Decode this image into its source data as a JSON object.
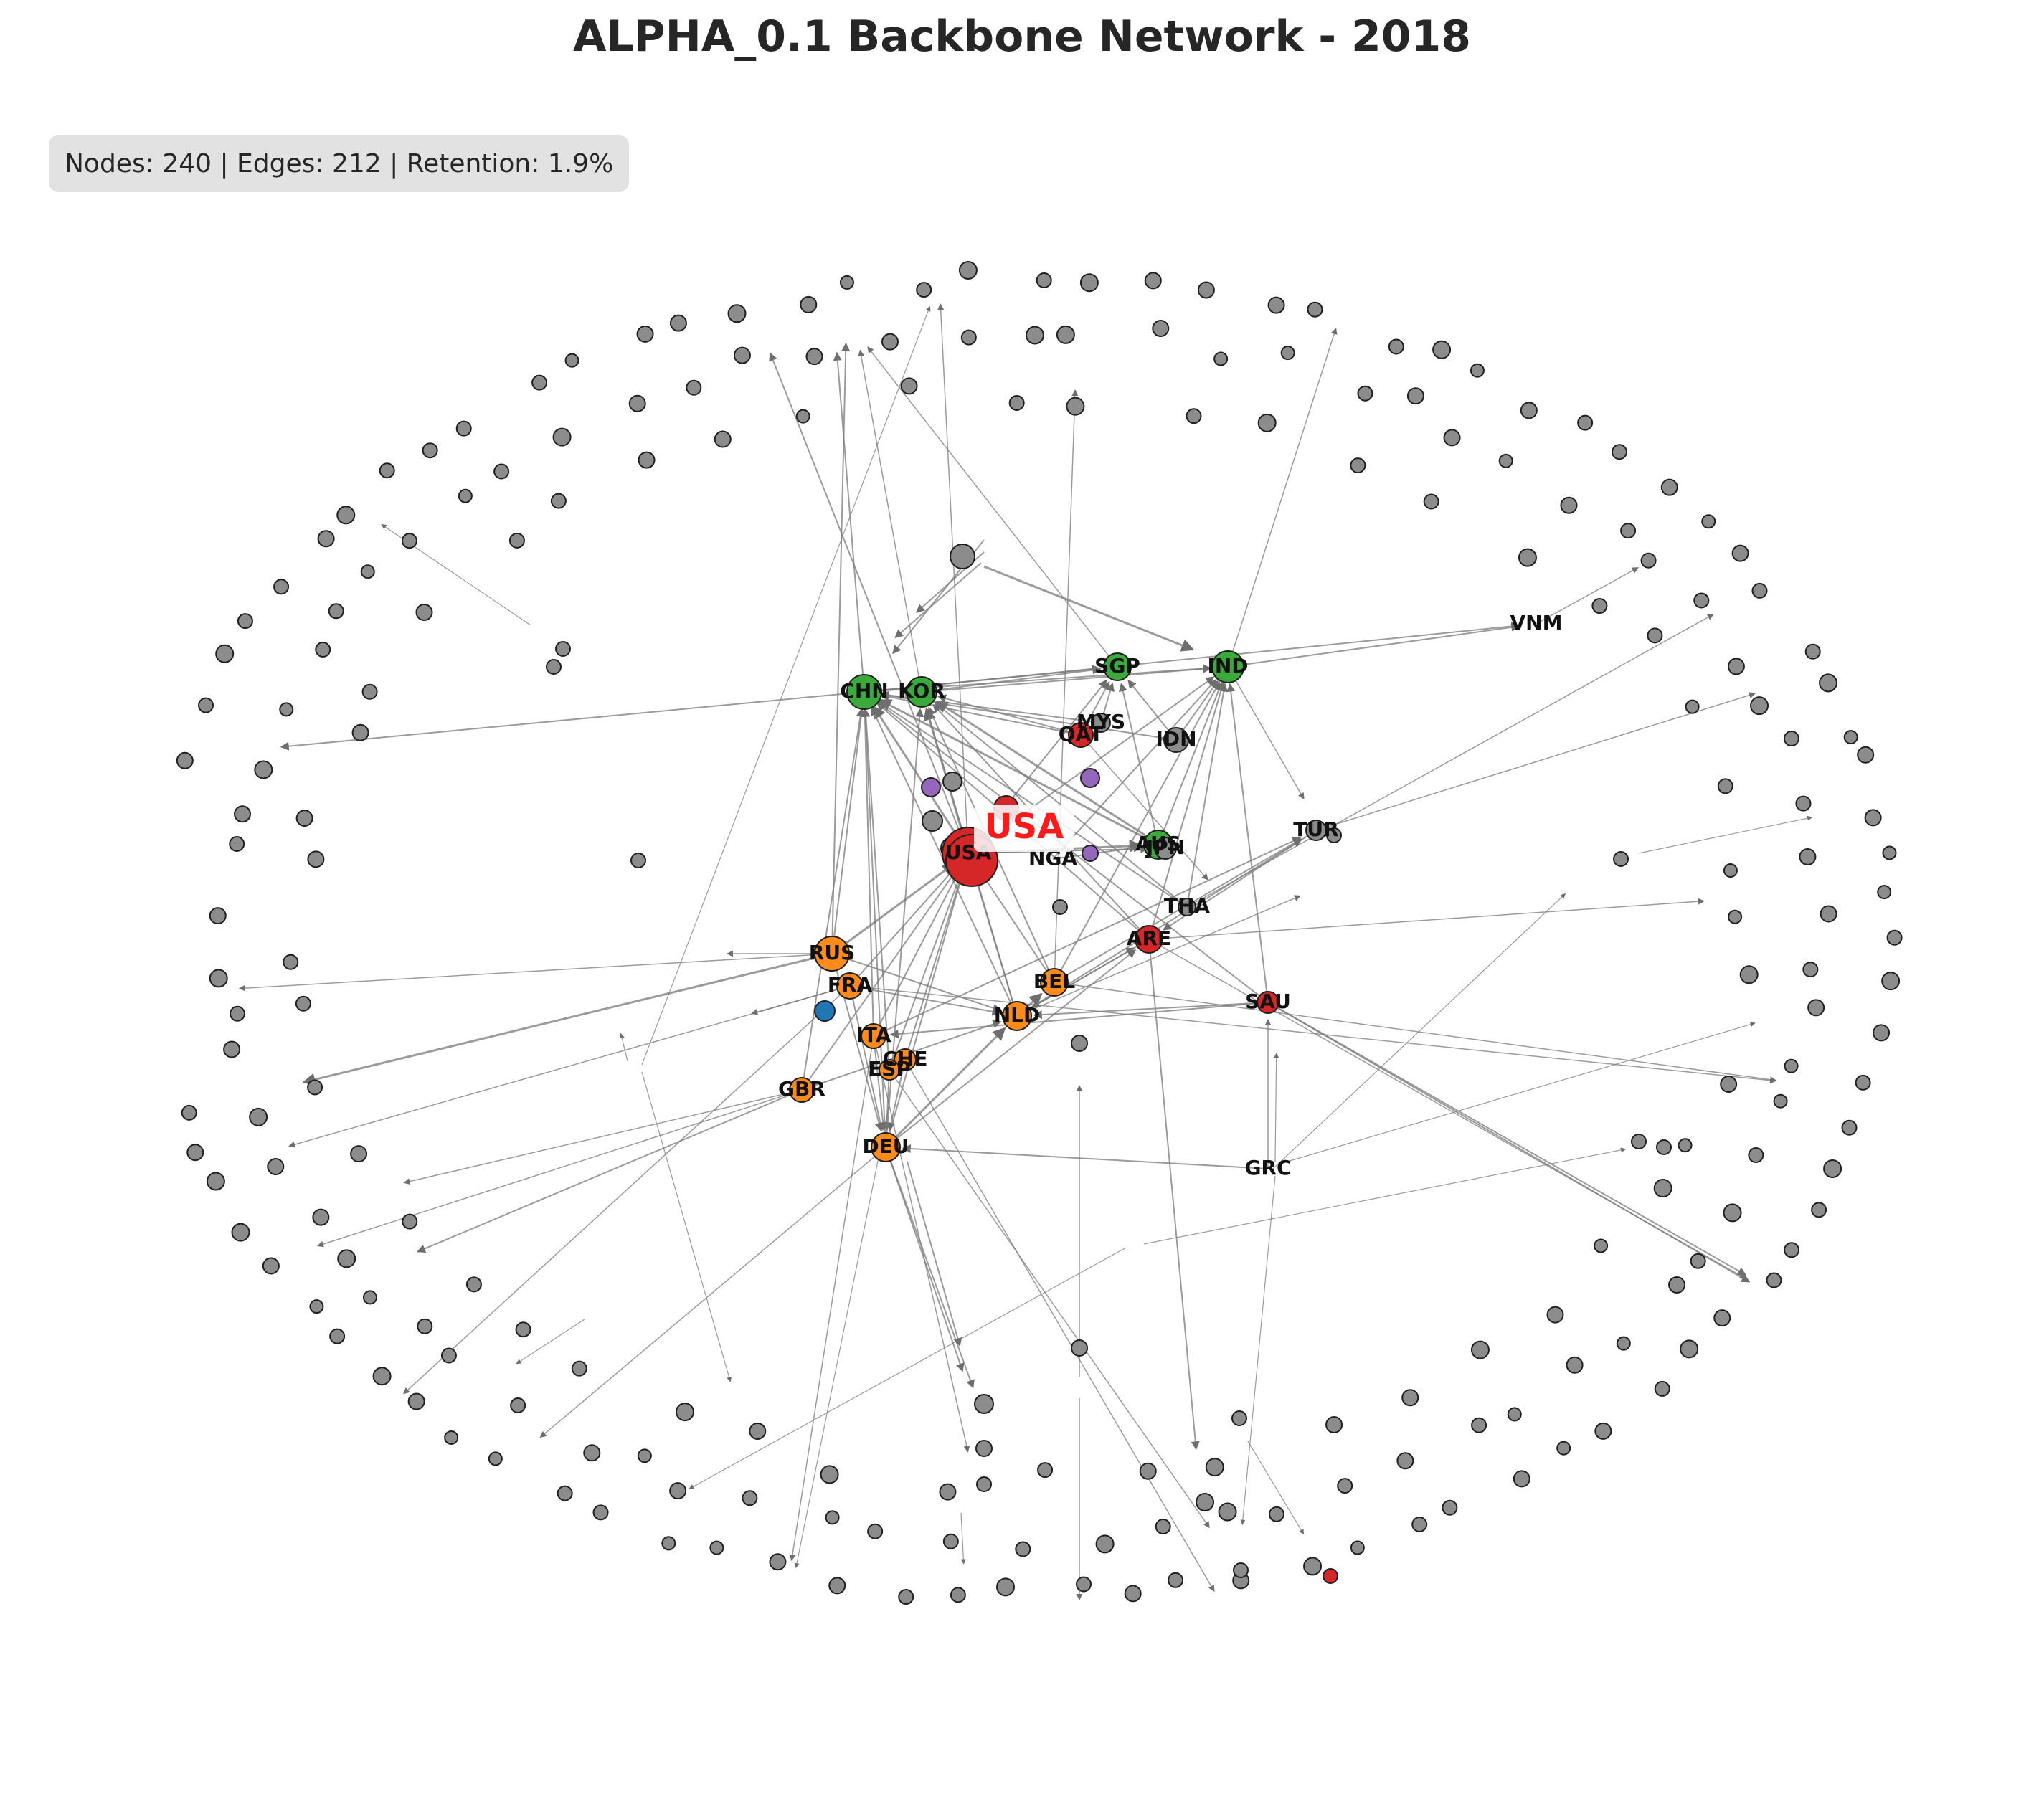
{
  "title": "ALPHA_0.1 Backbone Network - 2018",
  "stats": "Nodes: 240 | Edges: 212 | Retention: 1.9%",
  "highlight_label": "USA",
  "colors": {
    "background": "#ffffff",
    "stats_box": "#e2e2e2",
    "edge": "#7a7a7a",
    "highlight_text": "#ff1a1a",
    "group_americas": "#d62728",
    "group_asia": "#3aaa3a",
    "group_europe": "#ff8c1a",
    "group_middle_east": "#d62728",
    "group_other": "#8c8c8c",
    "group_purple": "#9467bd",
    "group_blue": "#1f77b4"
  },
  "labeled_nodes": [
    "CHN",
    "KOR",
    "SGP",
    "IND",
    "VNM",
    "MYS",
    "QAT",
    "IDN",
    "USA",
    "NGA",
    "AUS",
    "JPN",
    "TUR",
    "THA",
    "ARE",
    "RUS",
    "FRA",
    "BEL",
    "SAU",
    "NLD",
    "ITA",
    "CHE",
    "ESP",
    "GBR",
    "DEU",
    "GRC"
  ]
}
